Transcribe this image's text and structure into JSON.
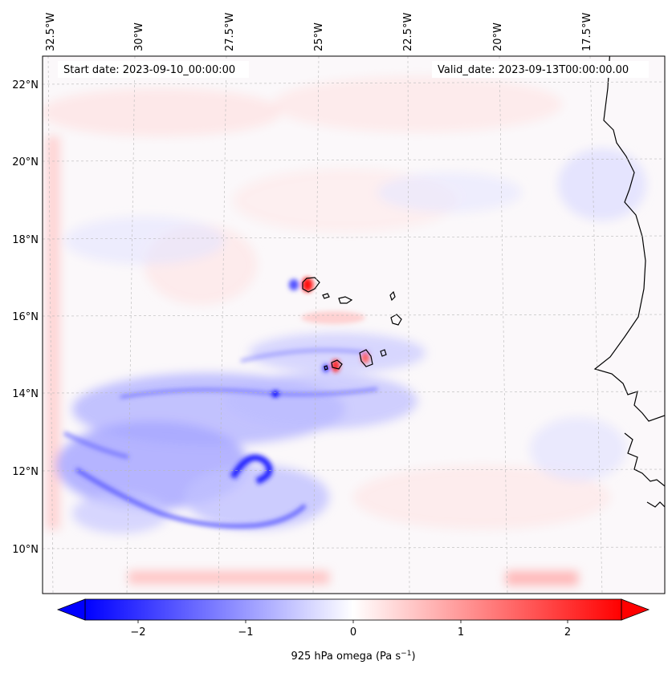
{
  "map": {
    "start_label": "Start date: 2023-09-10_00:00:00",
    "valid_label": "Valid_date: 2023-09-13T00:00:00.00",
    "lon_labels": [
      "32.5°W",
      "30°W",
      "27.5°W",
      "25°W",
      "22.5°W",
      "20°W",
      "17.5°W"
    ],
    "lat_labels": [
      "22°N",
      "20°N",
      "18°N",
      "16°N",
      "14°N",
      "12°N",
      "10°N"
    ],
    "colorbar": {
      "min": -2.5,
      "max": 2.5,
      "ticks": [
        "−2",
        "−1",
        "0",
        "1",
        "2"
      ],
      "label": "925 hPa omega (Pa s",
      "label_exp": "−1",
      "label_close": ")",
      "colors": {
        "neg": "#0000ff",
        "zero": "#ffffff",
        "pos": "#ff0000"
      }
    }
  }
}
